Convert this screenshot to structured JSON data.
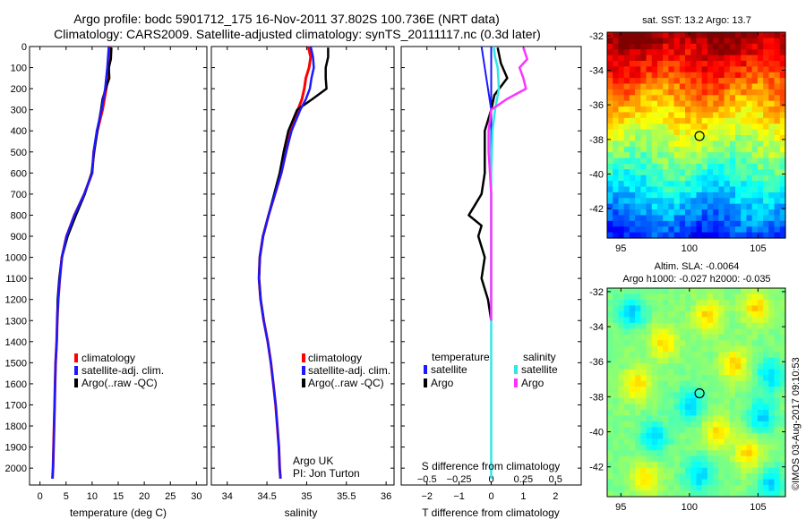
{
  "header": {
    "line1": "Argo profile: bodc 5901712_175 16-Nov-2011 37.802S 100.736E (NRT data)",
    "line2": "Climatology: CARS2009. Satellite-adjusted climatology: synTS_20111117.nc (0.3d later)"
  },
  "stamp": "©IMOS 03-Aug-2017 09:10:53",
  "colors": {
    "climatology": "#ff0000",
    "satellite_adj": "#1a1aff",
    "argo": "#000000",
    "t_satellite": "#1a1aff",
    "s_satellite": "#33e6e6",
    "s_argo": "#ff33ff"
  },
  "depth_axis": {
    "ticks": [
      0,
      100,
      200,
      300,
      400,
      500,
      600,
      700,
      800,
      900,
      1000,
      1100,
      1200,
      1300,
      1400,
      1500,
      1600,
      1700,
      1800,
      1900,
      2000
    ],
    "range": [
      0,
      2080
    ],
    "reversed": true
  },
  "panels": {
    "temperature": {
      "xlabel": "temperature (deg C)",
      "xticks": [
        0,
        5,
        10,
        15,
        20,
        25,
        30
      ],
      "xrange": [
        -2,
        32
      ],
      "legend": [
        "climatology",
        "satellite-adj. clim.",
        "Argo(..raw -QC)"
      ]
    },
    "salinity": {
      "xlabel": "salinity",
      "xticks": [
        "34",
        "34.5",
        "35",
        "35.5",
        "36"
      ],
      "xrange": [
        33.8,
        36.1
      ],
      "legend": [
        "climatology",
        "satellite-adj. clim.",
        "Argo(..raw -QC)"
      ],
      "note1": "Argo UK",
      "note2": "PI: Jon Turton"
    },
    "difference": {
      "xlabel": "T difference from climatology",
      "top_xlabel": "S difference from climatology",
      "t_ticks": [
        "−2",
        "−1",
        "0",
        "1",
        "2"
      ],
      "t_range": [
        -2.8,
        2.8
      ],
      "s_ticks": [
        "−0.5",
        "−0.25",
        "0",
        "0.25",
        "0.5"
      ],
      "s_tick_values": [
        -0.5,
        -0.25,
        0,
        0.25,
        0.5
      ],
      "legend_temp_title": "temperature",
      "legend_sal_title": "salinity",
      "legend_temp_items": [
        "satellite",
        "Argo"
      ],
      "legend_sal_items": [
        "satellite",
        "Argo"
      ]
    }
  },
  "maps": {
    "sst": {
      "title": "sat. SST: 13.2  Argo: 13.7",
      "yticks": [
        "-32",
        "-34",
        "-36",
        "-38",
        "-40",
        "-42"
      ],
      "ytick_values": [
        -32,
        -34,
        -36,
        -38,
        -40,
        -42
      ],
      "xticks": [
        "95",
        "100",
        "105"
      ],
      "xtick_values": [
        95,
        100,
        105
      ],
      "lon_range": [
        94,
        107
      ],
      "lat_range": [
        -31.8,
        -43.7
      ],
      "marker": {
        "lon": 100.736,
        "lat": -37.802
      }
    },
    "sla": {
      "title1": "Altim. SLA: -0.0064",
      "title2": "Argo h1000: -0.027 h2000: -0.035",
      "yticks": [
        "-32",
        "-34",
        "-36",
        "-38",
        "-40",
        "-42"
      ],
      "ytick_values": [
        -32,
        -34,
        -36,
        -38,
        -40,
        -42
      ],
      "xticks": [
        "95",
        "100",
        "105"
      ],
      "xtick_values": [
        95,
        100,
        105
      ],
      "lon_range": [
        94,
        107
      ],
      "lat_range": [
        -31.8,
        -43.7
      ],
      "marker": {
        "lon": 100.736,
        "lat": -37.802
      }
    }
  },
  "chart_data": [
    {
      "type": "line",
      "xlabel": "temperature (deg C)",
      "ylabel": "",
      "xlim": [
        -2,
        32
      ],
      "ylim": [
        2080,
        0
      ],
      "series": [
        {
          "name": "climatology",
          "depth": [
            0,
            100,
            200,
            300,
            400,
            500,
            600,
            700,
            800,
            900,
            1000,
            1100,
            1200,
            1300,
            1400,
            1500,
            1600,
            1700,
            1800,
            1900,
            2000,
            2050
          ],
          "values": [
            13.5,
            13.2,
            12.7,
            12.0,
            11.0,
            10.3,
            10.0,
            8.5,
            6.6,
            5.1,
            4.2,
            3.8,
            3.5,
            3.3,
            3.2,
            3.0,
            2.9,
            2.8,
            2.7,
            2.6,
            2.5,
            2.4
          ]
        },
        {
          "name": "satellite-adj. clim.",
          "depth": [
            0,
            100,
            200,
            300,
            400,
            500,
            600,
            700,
            800,
            900,
            1000,
            1100,
            1200,
            1300,
            1400,
            1500,
            1600,
            1700,
            1800,
            1900,
            2000,
            2050
          ],
          "values": [
            13.2,
            12.9,
            12.5,
            11.8,
            10.9,
            10.3,
            10.0,
            8.5,
            6.6,
            5.1,
            4.2,
            3.8,
            3.5,
            3.3,
            3.2,
            3.0,
            2.9,
            2.8,
            2.7,
            2.6,
            2.5,
            2.4
          ]
        },
        {
          "name": "Argo(..raw -QC)",
          "depth": [
            5,
            60,
            100,
            150,
            200,
            250,
            300,
            400,
            500,
            600,
            700,
            800,
            900,
            1000,
            1100,
            1200,
            1300
          ],
          "values": [
            13.7,
            13.6,
            13.2,
            13.3,
            12.6,
            12.0,
            11.7,
            11.0,
            10.4,
            9.9,
            8.6,
            6.9,
            5.3,
            4.2,
            3.7,
            3.4,
            3.3
          ]
        }
      ]
    },
    {
      "type": "line",
      "xlabel": "salinity",
      "ylabel": "",
      "xlim": [
        33.8,
        36.1
      ],
      "ylim": [
        2080,
        0
      ],
      "series": [
        {
          "name": "climatology",
          "depth": [
            0,
            50,
            100,
            150,
            200,
            250,
            300,
            400,
            500,
            600,
            700,
            800,
            900,
            1000,
            1100,
            1200,
            1300,
            1400,
            1500,
            1600,
            1700,
            1800,
            1900,
            2000,
            2050
          ],
          "values": [
            35.02,
            35.05,
            35.03,
            34.99,
            34.97,
            34.94,
            34.89,
            34.8,
            34.74,
            34.68,
            34.6,
            34.52,
            34.45,
            34.41,
            34.4,
            34.42,
            34.46,
            34.51,
            34.55,
            34.58,
            34.61,
            34.63,
            34.65,
            34.66,
            34.67
          ]
        },
        {
          "name": "satellite-adj. clim.",
          "depth": [
            0,
            50,
            100,
            150,
            200,
            250,
            300,
            400,
            500,
            600,
            700,
            800,
            900,
            1000,
            1100,
            1200,
            1300,
            1400,
            1500,
            1600,
            1700,
            1800,
            1900,
            2000,
            2050
          ],
          "values": [
            35.05,
            35.08,
            35.09,
            35.06,
            35.04,
            34.99,
            34.92,
            34.81,
            34.74,
            34.68,
            34.6,
            34.52,
            34.45,
            34.41,
            34.4,
            34.42,
            34.46,
            34.51,
            34.55,
            34.58,
            34.61,
            34.63,
            34.65,
            34.66,
            34.67
          ]
        },
        {
          "name": "Argo(..raw -QC)",
          "depth": [
            5,
            50,
            100,
            150,
            200,
            250,
            300,
            400,
            500,
            600,
            700,
            800,
            900,
            1000,
            1100,
            1200,
            1300
          ],
          "values": [
            35.27,
            35.27,
            35.24,
            35.24,
            35.25,
            35.07,
            34.88,
            34.77,
            34.71,
            34.66,
            34.59,
            34.52,
            34.45,
            34.41,
            34.4,
            34.42,
            34.46
          ]
        }
      ]
    },
    {
      "type": "line",
      "xlabel": "T difference from climatology",
      "ylabel": "",
      "xlim": [
        -2.8,
        2.8
      ],
      "ylim": [
        2080,
        0
      ],
      "series": [
        {
          "name": "temperature satellite",
          "depth": [
            0,
            100,
            200,
            300,
            400,
            600,
            800,
            1000,
            1200,
            1400,
            1600,
            1800,
            2000,
            2050
          ],
          "values": [
            -0.3,
            -0.2,
            -0.1,
            0,
            0,
            0,
            0,
            0,
            0,
            0,
            0,
            0,
            0,
            0
          ]
        },
        {
          "name": "temperature Argo",
          "depth": [
            5,
            80,
            150,
            230,
            300,
            400,
            500,
            600,
            700,
            750,
            800,
            850,
            900,
            1000,
            1100,
            1200,
            1300
          ],
          "values": [
            0.2,
            0.3,
            0.5,
            0.1,
            0,
            -0.2,
            -0.2,
            -0.2,
            -0.3,
            -0.5,
            -0.7,
            -0.3,
            -0.4,
            -0.2,
            -0.3,
            -0.1,
            0
          ]
        }
      ]
    },
    {
      "type": "line",
      "xlabel": "S difference from climatology",
      "ylabel": "",
      "xlim": [
        -0.7,
        0.7
      ],
      "ylim": [
        2080,
        0
      ],
      "series": [
        {
          "name": "salinity satellite",
          "depth": [
            0,
            50,
            100,
            200,
            300,
            400,
            600,
            800,
            1000,
            1200,
            1400,
            1600,
            1800,
            2000,
            2050
          ],
          "values": [
            0.02,
            0.03,
            0.05,
            0.06,
            0.03,
            0.01,
            0,
            0,
            0,
            0,
            0,
            0,
            0,
            0,
            0
          ]
        },
        {
          "name": "salinity Argo",
          "depth": [
            5,
            60,
            100,
            150,
            200,
            250,
            300,
            400,
            500,
            600,
            700,
            800,
            900,
            1000,
            1100,
            1200,
            1300
          ],
          "values": [
            0.25,
            0.28,
            0.22,
            0.25,
            0.27,
            0.12,
            0,
            -0.02,
            -0.02,
            -0.01,
            0,
            0,
            0,
            0,
            0,
            0,
            0
          ]
        }
      ]
    }
  ]
}
